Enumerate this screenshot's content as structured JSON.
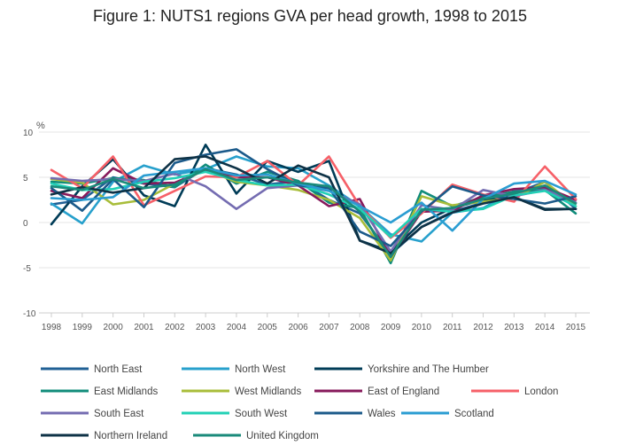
{
  "title": "Figure 1: NUTS1 regions GVA per head growth, 1998 to 2015",
  "colors": {
    "background": "#ffffff",
    "grid": "#e6e6e6",
    "axis": "#cccccc"
  },
  "chart_data": {
    "type": "line",
    "title": "Figure 1: NUTS1 regions GVA per head growth, 1998 to 2015",
    "xlabel": "",
    "ylabel": "%",
    "ylim": [
      -10,
      10
    ],
    "yticks": [
      -10,
      -5,
      0,
      5,
      10
    ],
    "grid": true,
    "legend_position": "bottom",
    "x": [
      "1998",
      "1999",
      "2000",
      "2001",
      "2002",
      "2003",
      "2004",
      "2005",
      "2006",
      "2007",
      "2008",
      "2009",
      "2010",
      "2011",
      "2012",
      "2013",
      "2014",
      "2015"
    ],
    "series": [
      {
        "name": "North East",
        "color": "#206095",
        "values": [
          2.0,
          2.5,
          5.0,
          4.3,
          3.9,
          6.0,
          5.3,
          4.2,
          4.6,
          2.5,
          1.0,
          -3.5,
          -0.5,
          1.2,
          2.2,
          3.2,
          4.5,
          1.5
        ]
      },
      {
        "name": "North West",
        "color": "#27a0cc",
        "values": [
          2.1,
          -0.1,
          4.5,
          6.3,
          5.3,
          5.9,
          7.3,
          6.2,
          6.0,
          4.1,
          1.8,
          -1.3,
          -2.1,
          1.1,
          1.6,
          3.5,
          3.8,
          2.2
        ]
      },
      {
        "name": "Yorkshire and The Humber",
        "color": "#003c57",
        "values": [
          -0.2,
          4.0,
          7.0,
          3.0,
          1.8,
          8.6,
          3.2,
          6.8,
          5.6,
          6.8,
          -2.0,
          -3.2,
          0.0,
          1.6,
          2.5,
          2.8,
          1.5,
          1.5
        ]
      },
      {
        "name": "East Midlands",
        "color": "#118c7b",
        "values": [
          4.5,
          4.3,
          4.9,
          4.7,
          3.9,
          6.4,
          4.3,
          5.6,
          4.6,
          2.2,
          1.6,
          -4.5,
          3.5,
          1.8,
          2.8,
          3.4,
          3.6,
          1.0
        ]
      },
      {
        "name": "West Midlands",
        "color": "#a8bd3a",
        "values": [
          4.8,
          4.4,
          2.0,
          2.5,
          4.3,
          5.8,
          4.5,
          4.1,
          3.6,
          2.5,
          0.5,
          -4.2,
          2.9,
          1.9,
          2.3,
          2.7,
          4.5,
          1.8
        ]
      },
      {
        "name": "East of England",
        "color": "#871a5b",
        "values": [
          3.5,
          2.7,
          6.0,
          4.3,
          4.4,
          5.8,
          5.0,
          5.0,
          4.1,
          1.8,
          2.6,
          -3.8,
          1.2,
          1.3,
          3.0,
          3.7,
          3.9,
          2.5
        ]
      },
      {
        "name": "London",
        "color": "#f66068",
        "values": [
          5.8,
          3.8,
          7.3,
          1.9,
          3.5,
          5.1,
          5.0,
          6.8,
          4.1,
          7.3,
          1.8,
          -1.7,
          1.0,
          4.2,
          3.1,
          2.3,
          6.2,
          2.6
        ]
      },
      {
        "name": "South East",
        "color": "#746cb1",
        "values": [
          4.9,
          4.6,
          4.8,
          4.6,
          5.4,
          4.0,
          1.5,
          3.8,
          4.1,
          3.5,
          2.0,
          -3.2,
          1.9,
          1.4,
          3.6,
          2.9,
          3.6,
          2.2
        ]
      },
      {
        "name": "South West",
        "color": "#22d0b6",
        "values": [
          4.3,
          3.6,
          3.7,
          4.5,
          4.9,
          5.6,
          4.7,
          4.1,
          4.2,
          3.1,
          1.5,
          -1.6,
          1.5,
          1.2,
          1.5,
          3.0,
          3.5,
          1.8
        ]
      },
      {
        "name": "Wales",
        "color": "#1b5a8a",
        "values": [
          3.8,
          1.3,
          4.8,
          1.7,
          6.6,
          7.5,
          8.1,
          5.9,
          4.1,
          3.8,
          -1.0,
          -2.6,
          1.2,
          4.0,
          3.0,
          2.6,
          2.1,
          2.9
        ]
      },
      {
        "name": "Scotland",
        "color": "#2a9dd2",
        "values": [
          2.7,
          2.5,
          2.8,
          5.2,
          5.6,
          6.0,
          5.2,
          5.3,
          4.3,
          3.5,
          1.8,
          0.0,
          2.2,
          -0.9,
          2.6,
          4.3,
          4.6,
          3.1
        ]
      },
      {
        "name": "Northern Ireland",
        "color": "#0e3246",
        "values": [
          3.1,
          3.9,
          3.3,
          3.8,
          7.0,
          7.3,
          6.0,
          4.3,
          6.3,
          5.0,
          -2.0,
          -3.4,
          -0.5,
          1.1,
          2.1,
          2.8,
          1.4,
          1.5
        ]
      },
      {
        "name": "United Kingdom",
        "color": "#1a8a7a",
        "values": [
          4.0,
          3.6,
          4.8,
          3.8,
          4.2,
          5.9,
          4.7,
          5.0,
          4.4,
          4.0,
          1.2,
          -3.8,
          1.4,
          1.6,
          2.6,
          3.2,
          4.1,
          2.1
        ]
      }
    ]
  }
}
